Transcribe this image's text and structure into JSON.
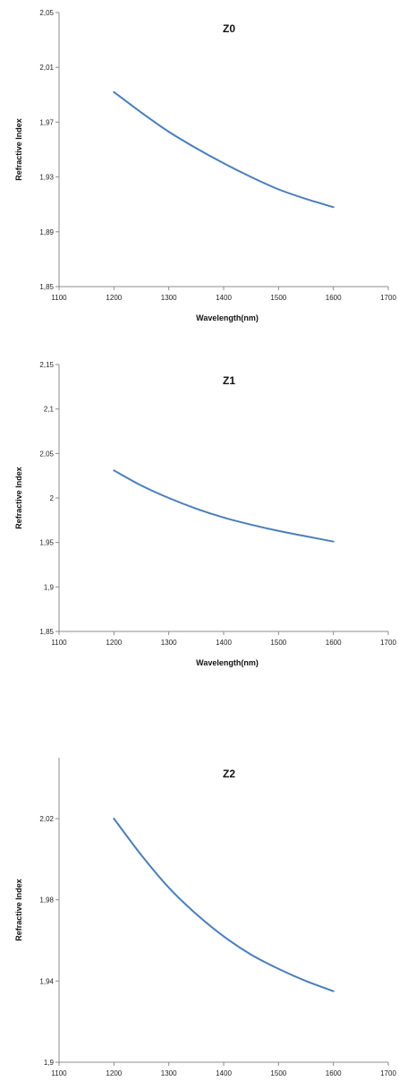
{
  "series_color": "#4a7ebb",
  "chart_data": [
    {
      "type": "line",
      "title": "Z0",
      "xlabel": "Wavelength(nm)",
      "ylabel": "Refractive Index",
      "xlim": [
        1100,
        1700
      ],
      "ylim": [
        1.85,
        2.05
      ],
      "x_ticks": [
        "1100",
        "1200",
        "1300",
        "1400",
        "1500",
        "1600",
        "1700"
      ],
      "y_ticks": [
        "1,85",
        "1,89",
        "1,93",
        "1,97",
        "2,01",
        "2,05"
      ],
      "grid": false,
      "legend": "none",
      "series": [
        {
          "x": [
            1200,
            1250,
            1300,
            1350,
            1400,
            1450,
            1500,
            1550,
            1600
          ],
          "y": [
            1.992,
            1.977,
            1.963,
            1.951,
            1.94,
            1.93,
            1.921,
            1.914,
            1.908
          ]
        }
      ]
    },
    {
      "type": "line",
      "title": "Z1",
      "xlabel": "Wavelength(nm)",
      "ylabel": "Refractive Index",
      "xlim": [
        1100,
        1700
      ],
      "ylim": [
        1.85,
        2.15
      ],
      "x_ticks": [
        "1100",
        "1200",
        "1300",
        "1400",
        "1500",
        "1600",
        "1700"
      ],
      "y_ticks": [
        "1,85",
        "1,9",
        "1,95",
        "2",
        "2,05",
        "2,1",
        "2,15"
      ],
      "grid": false,
      "legend": "none",
      "series": [
        {
          "x": [
            1200,
            1250,
            1300,
            1350,
            1400,
            1450,
            1500,
            1550,
            1600
          ],
          "y": [
            2.031,
            2.014,
            2.0,
            1.988,
            1.978,
            1.97,
            1.963,
            1.957,
            1.951
          ]
        }
      ]
    },
    {
      "type": "line",
      "title": "Z2",
      "xlabel": "Wavelength(nm)",
      "ylabel": "Refractive Index",
      "xlim": [
        1100,
        1700
      ],
      "ylim": [
        1.9,
        2.05
      ],
      "x_ticks": [
        "1100",
        "1200",
        "1300",
        "1400",
        "1500",
        "1600",
        "1700"
      ],
      "y_ticks": [
        "1,9",
        "1,94",
        "1,98",
        "2,02"
      ],
      "grid": false,
      "legend": "none",
      "series": [
        {
          "x": [
            1200,
            1250,
            1300,
            1350,
            1400,
            1450,
            1500,
            1550,
            1600
          ],
          "y": [
            2.02,
            2.002,
            1.986,
            1.973,
            1.962,
            1.953,
            1.946,
            1.94,
            1.935
          ]
        }
      ]
    }
  ]
}
